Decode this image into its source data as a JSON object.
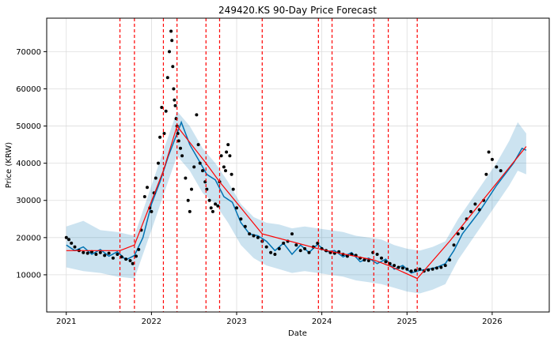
{
  "chart_data": {
    "type": "line",
    "title": "249420.KS 90-Day Price Forecast",
    "xlabel": "Date",
    "ylabel": "Price (KRW)",
    "xlim": [
      2020.77,
      2026.67
    ],
    "ylim": [
      0,
      79000
    ],
    "grid": true,
    "x_ticks": [
      {
        "value": 2021,
        "label": "2021"
      },
      {
        "value": 2022,
        "label": "2022"
      },
      {
        "value": 2023,
        "label": "2023"
      },
      {
        "value": 2024,
        "label": "2024"
      },
      {
        "value": 2025,
        "label": "2025"
      },
      {
        "value": 2026,
        "label": "2026"
      }
    ],
    "y_ticks": [
      {
        "value": 10000,
        "label": "10000"
      },
      {
        "value": 20000,
        "label": "20000"
      },
      {
        "value": 30000,
        "label": "30000"
      },
      {
        "value": 40000,
        "label": "40000"
      },
      {
        "value": 50000,
        "label": "50000"
      },
      {
        "value": 60000,
        "label": "60000"
      },
      {
        "value": 70000,
        "label": "70000"
      }
    ],
    "colors": {
      "forecast": "#0072B2",
      "interval": "#0072B2",
      "trend": "#ff0000",
      "changepoint": "#ff0000",
      "observed": "#000000",
      "grid": "#dddddd"
    },
    "changepoints": [
      2021.63,
      2021.8,
      2022.14,
      2022.3,
      2022.64,
      2022.8,
      2023.3,
      2023.96,
      2024.12,
      2024.61,
      2024.78,
      2025.12
    ],
    "trend": {
      "x": [
        2021.0,
        2021.63,
        2021.8,
        2022.14,
        2022.3,
        2022.64,
        2022.8,
        2023.3,
        2023.96,
        2024.12,
        2024.61,
        2024.78,
        2025.12,
        2025.5,
        2026.4
      ],
      "y": [
        16500,
        16500,
        18000,
        38000,
        50000,
        40000,
        35000,
        21000,
        17000,
        16200,
        14000,
        12500,
        9000,
        19000,
        44500
      ]
    },
    "forecast": {
      "x": [
        2021.0,
        2021.1,
        2021.2,
        2021.3,
        2021.4,
        2021.5,
        2021.6,
        2021.7,
        2021.8,
        2021.9,
        2022.0,
        2022.1,
        2022.2,
        2022.3,
        2022.35,
        2022.45,
        2022.55,
        2022.65,
        2022.75,
        2022.85,
        2022.95,
        2023.05,
        2023.15,
        2023.25,
        2023.35,
        2023.45,
        2023.55,
        2023.65,
        2023.75,
        2023.85,
        2023.95,
        2024.05,
        2024.15,
        2024.25,
        2024.35,
        2024.45,
        2024.55,
        2024.65,
        2024.75,
        2024.85,
        2024.95,
        2025.05,
        2025.15,
        2025.25,
        2025.35,
        2025.45,
        2025.55,
        2025.65,
        2025.75,
        2025.85,
        2025.95,
        2026.05,
        2026.15,
        2026.25,
        2026.35,
        2026.4
      ],
      "y": [
        18000,
        16500,
        17500,
        15500,
        16800,
        15000,
        16200,
        14000,
        15200,
        20000,
        29000,
        35000,
        42000,
        48000,
        51000,
        45000,
        41000,
        37000,
        35500,
        31000,
        29500,
        24000,
        21000,
        20500,
        19000,
        16500,
        18500,
        15500,
        18000,
        16000,
        18200,
        16200,
        16500,
        14800,
        16000,
        13500,
        14500,
        13000,
        14200,
        11500,
        12500,
        10500,
        11200,
        11500,
        12000,
        13000,
        16500,
        21000,
        24000,
        27000,
        30500,
        34000,
        37000,
        40000,
        44000,
        43500
      ]
    },
    "interval": {
      "x": [
        2021.0,
        2021.2,
        2021.4,
        2021.6,
        2021.8,
        2022.0,
        2022.15,
        2022.3,
        2022.45,
        2022.6,
        2022.75,
        2022.9,
        2023.05,
        2023.2,
        2023.35,
        2023.5,
        2023.65,
        2023.8,
        2023.95,
        2024.1,
        2024.25,
        2024.4,
        2024.55,
        2024.7,
        2024.85,
        2025.0,
        2025.15,
        2025.3,
        2025.45,
        2025.6,
        2025.75,
        2025.9,
        2026.05,
        2026.2,
        2026.3,
        2026.4
      ],
      "upper": [
        23000,
        24500,
        22000,
        21500,
        20500,
        34000,
        44000,
        54000,
        50000,
        44000,
        40000,
        35000,
        29000,
        25500,
        24000,
        23500,
        22500,
        23000,
        22500,
        22000,
        21500,
        20500,
        20000,
        19500,
        18000,
        17000,
        16500,
        17500,
        19000,
        25000,
        30000,
        35000,
        40000,
        46000,
        51000,
        48000
      ],
      "lower": [
        12000,
        11000,
        10500,
        9500,
        9000,
        22000,
        32000,
        42000,
        38000,
        32000,
        29000,
        24000,
        18000,
        14500,
        12500,
        11500,
        10500,
        11000,
        10500,
        10000,
        9500,
        8500,
        8000,
        7500,
        6500,
        5500,
        5000,
        6000,
        7500,
        14000,
        19000,
        24000,
        29000,
        34000,
        38000,
        37000
      ]
    },
    "observed": {
      "x": [
        2021.0,
        2021.03,
        2021.06,
        2021.1,
        2021.15,
        2021.2,
        2021.25,
        2021.3,
        2021.35,
        2021.4,
        2021.45,
        2021.5,
        2021.55,
        2021.6,
        2021.65,
        2021.7,
        2021.75,
        2021.78,
        2021.82,
        2021.85,
        2021.88,
        2021.92,
        2021.95,
        2021.98,
        2022.0,
        2022.03,
        2022.05,
        2022.08,
        2022.1,
        2022.12,
        2022.15,
        2022.17,
        2022.19,
        2022.21,
        2022.23,
        2022.24,
        2022.25,
        2022.26,
        2022.27,
        2022.28,
        2022.29,
        2022.3,
        2022.31,
        2022.32,
        2022.34,
        2022.36,
        2022.4,
        2022.43,
        2022.45,
        2022.47,
        2022.5,
        2022.53,
        2022.55,
        2022.57,
        2022.6,
        2022.63,
        2022.65,
        2022.68,
        2022.7,
        2022.72,
        2022.75,
        2022.78,
        2022.8,
        2022.82,
        2022.85,
        2022.87,
        2022.88,
        2022.9,
        2022.92,
        2022.94,
        2022.96,
        2023.0,
        2023.05,
        2023.1,
        2023.15,
        2023.2,
        2023.25,
        2023.3,
        2023.35,
        2023.4,
        2023.45,
        2023.5,
        2023.55,
        2023.6,
        2023.65,
        2023.7,
        2023.75,
        2023.8,
        2023.85,
        2023.9,
        2023.95,
        2024.0,
        2024.05,
        2024.1,
        2024.15,
        2024.2,
        2024.25,
        2024.3,
        2024.35,
        2024.4,
        2024.45,
        2024.5,
        2024.55,
        2024.6,
        2024.65,
        2024.7,
        2024.75,
        2024.8,
        2024.85,
        2024.9,
        2024.95,
        2025.0,
        2025.05,
        2025.1,
        2025.15,
        2025.2,
        2025.25,
        2025.3,
        2025.35,
        2025.4,
        2025.45,
        2025.5,
        2025.55,
        2025.6,
        2025.65,
        2025.7,
        2025.75,
        2025.8,
        2025.85,
        2025.9,
        2025.93,
        2025.96,
        2026.0,
        2026.05,
        2026.1
      ],
      "y": [
        20000,
        19500,
        18500,
        17500,
        16500,
        16000,
        15800,
        16200,
        15500,
        16000,
        15200,
        15800,
        14500,
        15500,
        14800,
        14200,
        13800,
        13000,
        15000,
        16800,
        22000,
        31000,
        33500,
        28000,
        27000,
        32000,
        36000,
        40000,
        47000,
        55000,
        48000,
        54000,
        63000,
        70000,
        75500,
        73000,
        66000,
        60000,
        57000,
        55500,
        52000,
        50000,
        48000,
        46000,
        44000,
        42000,
        36000,
        30000,
        27000,
        33000,
        39000,
        53000,
        45000,
        40000,
        38000,
        35000,
        33000,
        30000,
        28000,
        27000,
        29000,
        28500,
        35000,
        42000,
        39000,
        38000,
        43000,
        45000,
        42000,
        37000,
        33000,
        28000,
        25000,
        23000,
        21000,
        20500,
        20000,
        19000,
        17500,
        16000,
        15500,
        17000,
        18500,
        19000,
        21000,
        18000,
        16500,
        17000,
        16000,
        17500,
        18500,
        17000,
        16500,
        16000,
        15800,
        16200,
        15500,
        15000,
        15500,
        15200,
        14500,
        14000,
        13800,
        16000,
        15500,
        14500,
        13500,
        13000,
        12500,
        12000,
        11800,
        11500,
        11000,
        11200,
        11500,
        11000,
        11300,
        11500,
        11800,
        12000,
        12500,
        14000,
        18000,
        21000,
        22500,
        25000,
        27000,
        29000,
        27500,
        30000,
        37000,
        43000,
        41000,
        39000,
        38000
      ]
    }
  }
}
